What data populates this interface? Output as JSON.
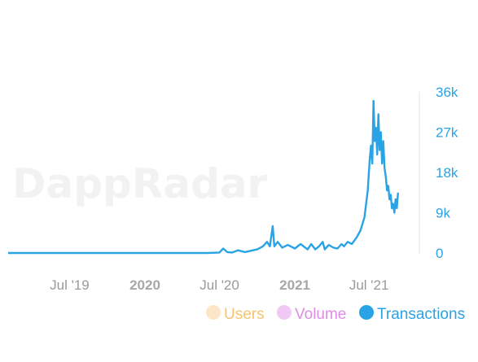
{
  "watermark": "DappRadar",
  "colors": {
    "transactions": "#2aa3e6",
    "users": "#f5c46f",
    "users_dot": "#fde6c8",
    "volume": "#e08be6",
    "volume_dot": "#f1c9f5",
    "axis_text": "#2aa3e6",
    "x_text": "#9a9a9a"
  },
  "chart_data": {
    "type": "line",
    "title": "",
    "xlabel": "",
    "ylabel": "",
    "ylim": [
      0,
      36000
    ],
    "y_axis_side": "right",
    "y_ticks": [
      0,
      9000,
      18000,
      27000,
      36000
    ],
    "y_tick_labels": [
      "0",
      "9k",
      "18k",
      "27k",
      "36k"
    ],
    "x_range": [
      "2019-02-01",
      "2021-11-01"
    ],
    "x_ticks": [
      {
        "date": "2019-07-01",
        "label": "Jul '19",
        "bold": false
      },
      {
        "date": "2020-01-01",
        "label": "2020",
        "bold": true
      },
      {
        "date": "2020-07-01",
        "label": "Jul '20",
        "bold": false
      },
      {
        "date": "2021-01-01",
        "label": "2021",
        "bold": true
      },
      {
        "date": "2021-07-01",
        "label": "Jul '21",
        "bold": false
      }
    ],
    "grid": false,
    "legend_position": "bottom-right",
    "legend": [
      {
        "name": "Users",
        "color_key": "users",
        "active": false
      },
      {
        "name": "Volume",
        "color_key": "volume",
        "active": false
      },
      {
        "name": "Transactions",
        "color_key": "transactions",
        "active": true
      }
    ],
    "series": [
      {
        "name": "Transactions",
        "points": [
          [
            "2019-02-01",
            0
          ],
          [
            "2019-04-01",
            0
          ],
          [
            "2019-06-01",
            0
          ],
          [
            "2019-08-01",
            0
          ],
          [
            "2019-10-01",
            0
          ],
          [
            "2019-12-01",
            0
          ],
          [
            "2020-02-01",
            0
          ],
          [
            "2020-04-01",
            0
          ],
          [
            "2020-06-01",
            0
          ],
          [
            "2020-07-01",
            100
          ],
          [
            "2020-07-10",
            1000
          ],
          [
            "2020-07-20",
            200
          ],
          [
            "2020-08-01",
            100
          ],
          [
            "2020-08-15",
            600
          ],
          [
            "2020-09-01",
            200
          ],
          [
            "2020-09-15",
            500
          ],
          [
            "2020-10-01",
            800
          ],
          [
            "2020-10-15",
            1500
          ],
          [
            "2020-10-25",
            2500
          ],
          [
            "2020-11-01",
            1500
          ],
          [
            "2020-11-08",
            6000
          ],
          [
            "2020-11-12",
            1500
          ],
          [
            "2020-11-20",
            2500
          ],
          [
            "2020-12-01",
            1200
          ],
          [
            "2020-12-15",
            1800
          ],
          [
            "2021-01-01",
            1000
          ],
          [
            "2021-01-15",
            2000
          ],
          [
            "2021-02-01",
            800
          ],
          [
            "2021-02-10",
            2000
          ],
          [
            "2021-02-20",
            800
          ],
          [
            "2021-03-01",
            1500
          ],
          [
            "2021-03-10",
            2500
          ],
          [
            "2021-03-15",
            800
          ],
          [
            "2021-03-25",
            1800
          ],
          [
            "2021-04-05",
            1200
          ],
          [
            "2021-04-15",
            1000
          ],
          [
            "2021-04-25",
            2000
          ],
          [
            "2021-05-01",
            1500
          ],
          [
            "2021-05-10",
            2500
          ],
          [
            "2021-05-20",
            2000
          ],
          [
            "2021-06-01",
            3500
          ],
          [
            "2021-06-10",
            5000
          ],
          [
            "2021-06-20",
            8000
          ],
          [
            "2021-06-28",
            14000
          ],
          [
            "2021-07-03",
            21000
          ],
          [
            "2021-07-06",
            24000
          ],
          [
            "2021-07-09",
            20000
          ],
          [
            "2021-07-12",
            34000
          ],
          [
            "2021-07-15",
            25000
          ],
          [
            "2021-07-18",
            28000
          ],
          [
            "2021-07-21",
            22000
          ],
          [
            "2021-07-24",
            31000
          ],
          [
            "2021-07-27",
            23000
          ],
          [
            "2021-07-30",
            27000
          ],
          [
            "2021-08-02",
            20000
          ],
          [
            "2021-08-05",
            25000
          ],
          [
            "2021-08-08",
            19000
          ],
          [
            "2021-08-11",
            17000
          ],
          [
            "2021-08-14",
            14000
          ],
          [
            "2021-08-17",
            15000
          ],
          [
            "2021-08-20",
            12000
          ],
          [
            "2021-08-23",
            13000
          ],
          [
            "2021-08-26",
            10000
          ],
          [
            "2021-08-29",
            11000
          ],
          [
            "2021-09-01",
            9000
          ],
          [
            "2021-09-04",
            12000
          ],
          [
            "2021-09-07",
            10000
          ],
          [
            "2021-09-10",
            13500
          ]
        ]
      }
    ]
  }
}
